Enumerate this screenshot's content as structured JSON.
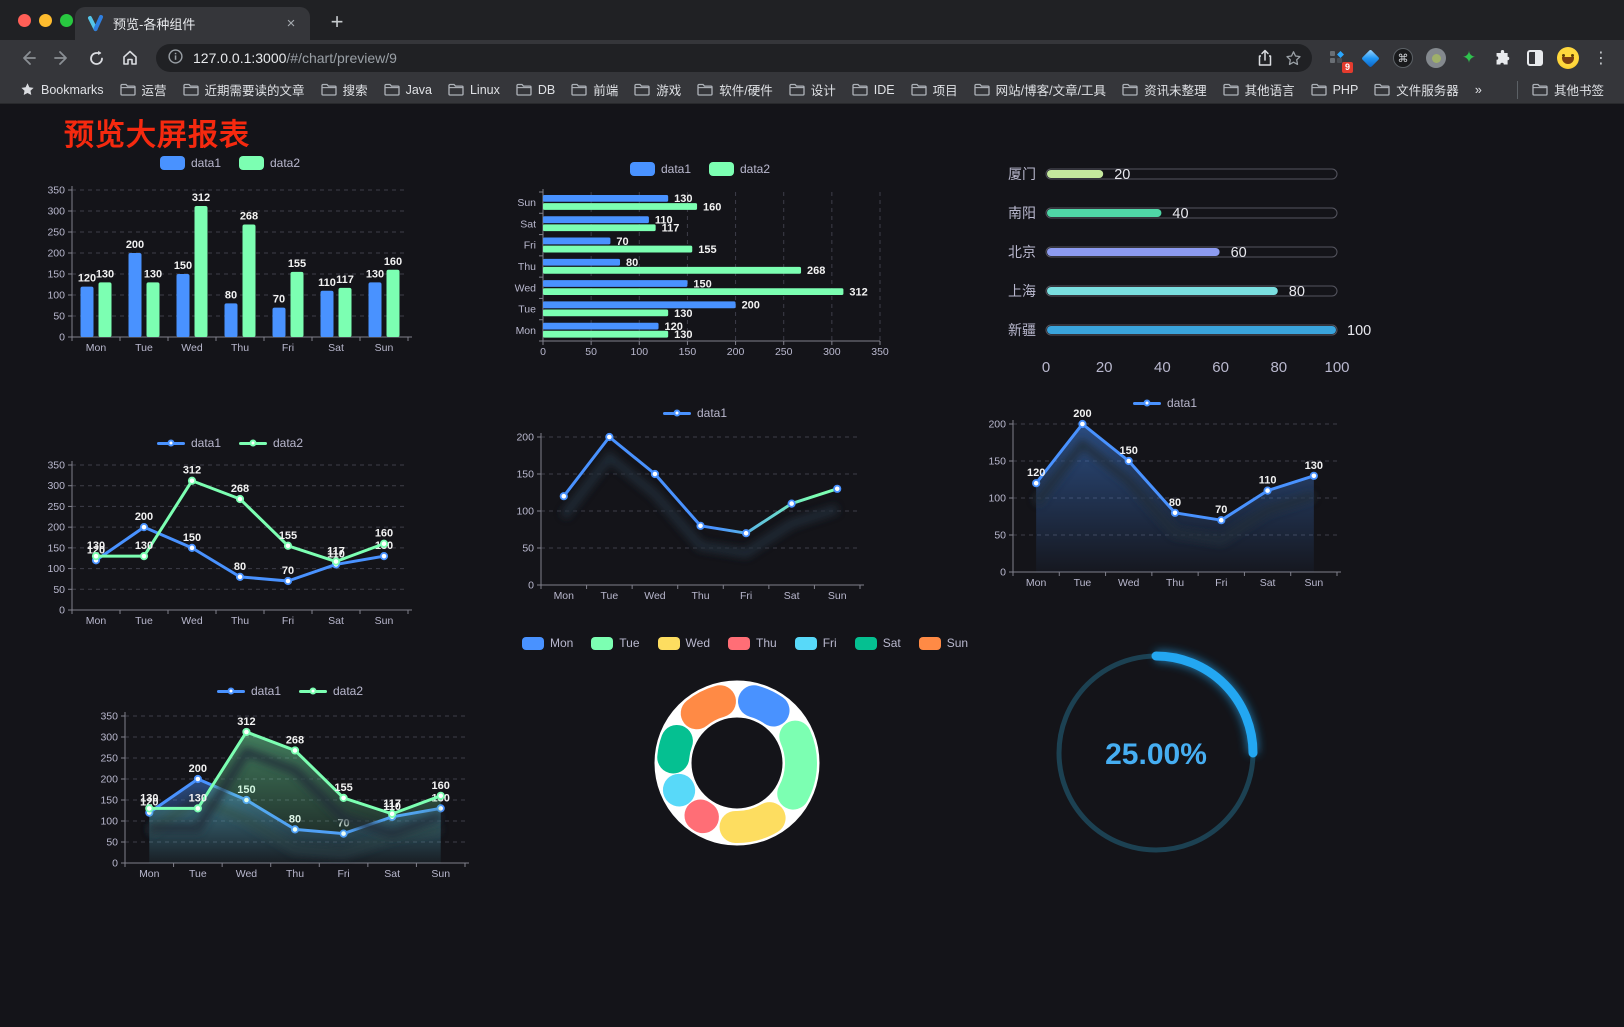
{
  "browser": {
    "tab": {
      "title": "预览-各种组件",
      "close_glyph": "×",
      "new_tab_glyph": "+"
    },
    "url": {
      "host": "127.0.0.1:3000",
      "path": "/#/chart/preview/9"
    },
    "toolbar_icons": [
      "back-arrow",
      "forward-arrow",
      "reload",
      "home",
      "info",
      "share",
      "bookmark-star"
    ],
    "extension_icons": [
      "grid-diamond-ext",
      "gem-ext",
      "command-ext",
      "recorder-ext",
      "green-star-ext",
      "puzzle-extensions",
      "dark-mode-toggle",
      "profile-avatar",
      "kebab-menu"
    ],
    "extension_badge": "9"
  },
  "bookmarks": {
    "items": [
      {
        "label": "Bookmarks",
        "icon": "star"
      },
      {
        "label": "运营",
        "icon": "folder"
      },
      {
        "label": "近期需要读的文章",
        "icon": "folder"
      },
      {
        "label": "搜索",
        "icon": "folder"
      },
      {
        "label": "Java",
        "icon": "folder"
      },
      {
        "label": "Linux",
        "icon": "folder"
      },
      {
        "label": "DB",
        "icon": "folder"
      },
      {
        "label": "前端",
        "icon": "folder"
      },
      {
        "label": "游戏",
        "icon": "folder"
      },
      {
        "label": "软件/硬件",
        "icon": "folder"
      },
      {
        "label": "设计",
        "icon": "folder"
      },
      {
        "label": "IDE",
        "icon": "folder"
      },
      {
        "label": "项目",
        "icon": "folder"
      },
      {
        "label": "网站/博客/文章/工具",
        "icon": "folder"
      },
      {
        "label": "资讯未整理",
        "icon": "folder"
      },
      {
        "label": "其他语言",
        "icon": "folder"
      },
      {
        "label": "PHP",
        "icon": "folder"
      },
      {
        "label": "文件服务器",
        "icon": "folder"
      },
      {
        "label": "»",
        "icon": "none"
      },
      {
        "label": "其他书签",
        "icon": "folder",
        "separator_before": true
      }
    ]
  },
  "page": {
    "title": "预览大屏报表"
  },
  "chart_data": [
    {
      "id": "bar-vertical",
      "type": "bar",
      "orientation": "vertical",
      "categories": [
        "Mon",
        "Tue",
        "Wed",
        "Thu",
        "Fri",
        "Sat",
        "Sun"
      ],
      "series": [
        {
          "name": "data1",
          "color": "#4992ff",
          "values": [
            120,
            200,
            150,
            80,
            70,
            110,
            130
          ]
        },
        {
          "name": "data2",
          "color": "#7cffb2",
          "values": [
            130,
            130,
            312,
            268,
            155,
            117,
            160
          ]
        }
      ],
      "ylim": [
        0,
        350
      ],
      "ystep": 50,
      "legend_position": "top",
      "grid": true
    },
    {
      "id": "bar-horizontal",
      "type": "bar",
      "orientation": "horizontal",
      "categories_top_to_bottom": [
        "Sun",
        "Sat",
        "Fri",
        "Thu",
        "Wed",
        "Tue",
        "Mon"
      ],
      "series": [
        {
          "name": "data1",
          "color": "#4992ff",
          "values": [
            130,
            110,
            70,
            80,
            150,
            200,
            120
          ]
        },
        {
          "name": "data2",
          "color": "#7cffb2",
          "values": [
            160,
            117,
            155,
            268,
            312,
            130,
            130
          ]
        }
      ],
      "xlim": [
        0,
        350
      ],
      "xstep": 50,
      "legend_position": "top",
      "grid": true
    },
    {
      "id": "progress-bars",
      "type": "bar",
      "orientation": "horizontal-progress",
      "categories": [
        "厦门",
        "南阳",
        "北京",
        "上海",
        "新疆"
      ],
      "values": [
        20,
        40,
        60,
        80,
        100
      ],
      "colors": [
        "#c4e89d",
        "#4fd6a6",
        "#8d9bf0",
        "#7adfe0",
        "#3aa4dc"
      ],
      "xlim": [
        0,
        100
      ],
      "xticks": [
        0,
        20,
        40,
        60,
        80,
        100
      ],
      "track_outline": "#55555f"
    },
    {
      "id": "line-two",
      "type": "line",
      "categories": [
        "Mon",
        "Tue",
        "Wed",
        "Thu",
        "Fri",
        "Sat",
        "Sun"
      ],
      "series": [
        {
          "name": "data1",
          "color": "#4992ff",
          "values": [
            120,
            200,
            150,
            80,
            70,
            110,
            130
          ]
        },
        {
          "name": "data2",
          "color": "#7cffb2",
          "values": [
            130,
            130,
            312,
            268,
            155,
            117,
            160
          ]
        }
      ],
      "ylim": [
        0,
        350
      ],
      "ystep": 50,
      "show_labels": true,
      "legend_position": "top"
    },
    {
      "id": "line-gradient",
      "type": "line",
      "categories": [
        "Mon",
        "Tue",
        "Wed",
        "Thu",
        "Fri",
        "Sat",
        "Sun"
      ],
      "series": [
        {
          "name": "data1",
          "color": "#4992ff",
          "gradient": [
            "#4992ff",
            "#7cffb2"
          ],
          "values": [
            120,
            200,
            150,
            80,
            70,
            110,
            130
          ]
        }
      ],
      "ylim": [
        0,
        200
      ],
      "ystep": 50,
      "show_labels": false,
      "shadow": true,
      "legend_position": "top"
    },
    {
      "id": "line-area",
      "type": "line",
      "categories": [
        "Mon",
        "Tue",
        "Wed",
        "Thu",
        "Fri",
        "Sat",
        "Sun"
      ],
      "series": [
        {
          "name": "data1",
          "color": "#4992ff",
          "area": true,
          "values": [
            120,
            200,
            150,
            80,
            70,
            110,
            130
          ]
        }
      ],
      "ylim": [
        0,
        200
      ],
      "ystep": 50,
      "show_labels": true,
      "shadow": true,
      "legend_position": "top"
    },
    {
      "id": "line-two-area",
      "type": "line",
      "categories": [
        "Mon",
        "Tue",
        "Wed",
        "Thu",
        "Fri",
        "Sat",
        "Sun"
      ],
      "series": [
        {
          "name": "data1",
          "color": "#4992ff",
          "area": true,
          "values": [
            120,
            200,
            150,
            80,
            70,
            110,
            130
          ]
        },
        {
          "name": "data2",
          "color": "#7cffb2",
          "area": true,
          "values": [
            130,
            130,
            312,
            268,
            155,
            117,
            160
          ]
        }
      ],
      "ylim": [
        0,
        350
      ],
      "ystep": 50,
      "show_labels": true,
      "shadow": true,
      "legend_position": "top"
    },
    {
      "id": "donut-pie",
      "type": "pie",
      "labels": [
        "Mon",
        "Tue",
        "Wed",
        "Thu",
        "Fri",
        "Sat",
        "Sun"
      ],
      "values": [
        120,
        200,
        150,
        80,
        70,
        110,
        130
      ],
      "colors": [
        "#4992ff",
        "#7cffb2",
        "#fddd60",
        "#ff6e76",
        "#58d9f9",
        "#05c091",
        "#ff8a45"
      ],
      "border_color": "#ffffff",
      "inner_radius_ratio": 0.6,
      "legend_position": "top"
    },
    {
      "id": "gauge-ring",
      "type": "gauge",
      "value": 25,
      "max": 100,
      "label": "25.00%",
      "progress_color": "#23a7f2",
      "track_color": "#1c4152",
      "text_color": "#46aef2"
    }
  ]
}
